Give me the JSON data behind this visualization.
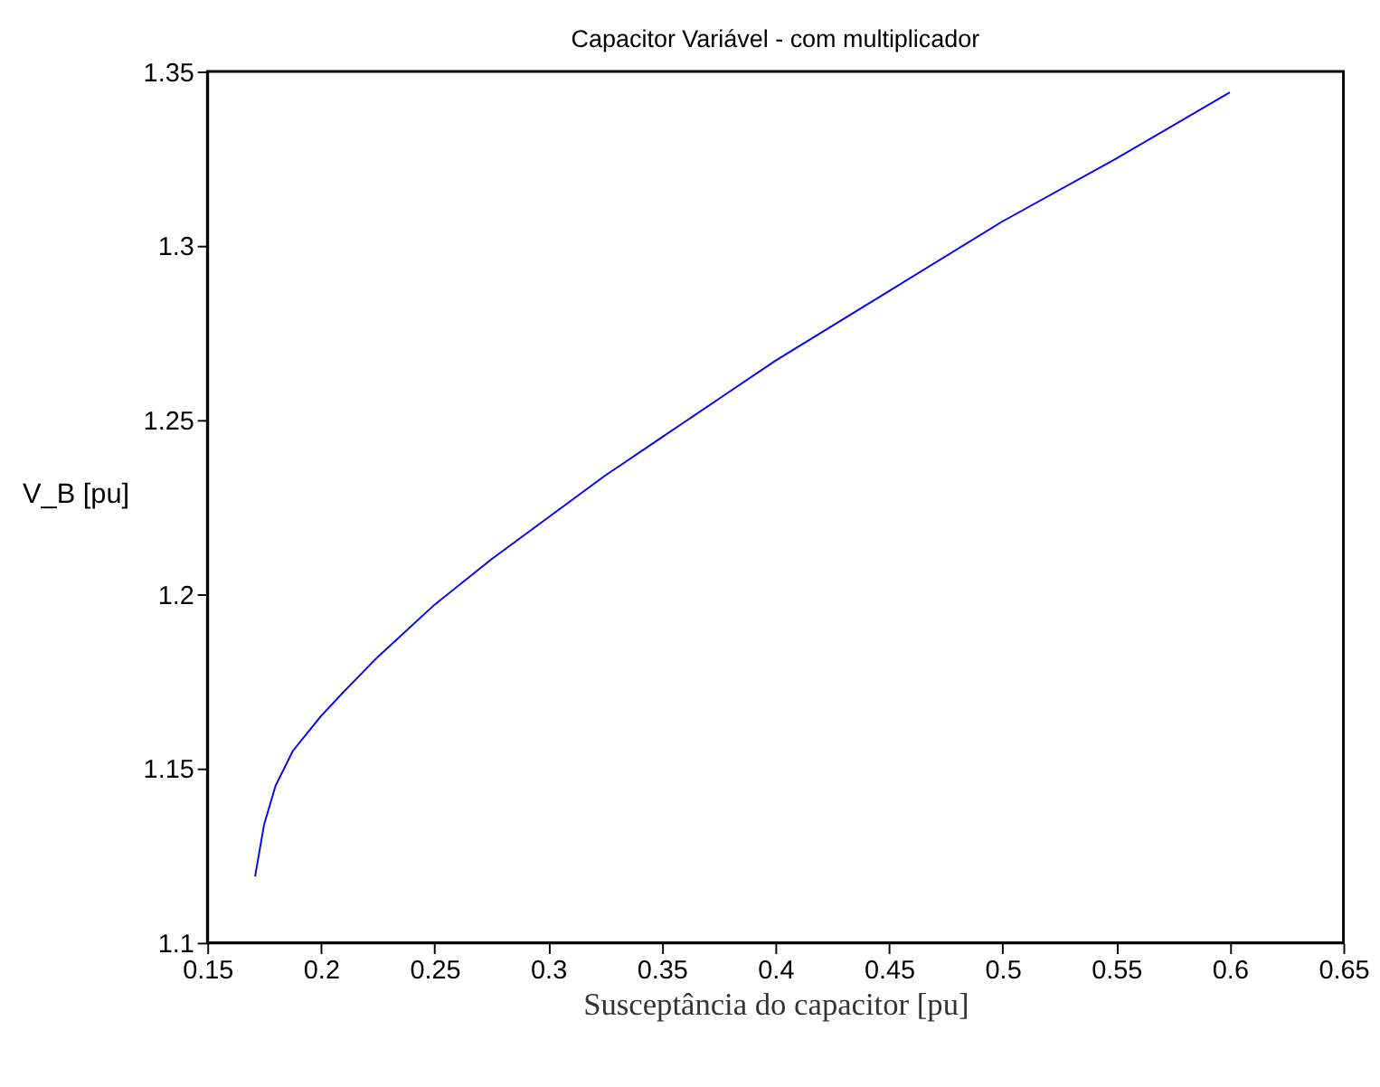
{
  "chart_data": {
    "type": "line",
    "title": "Capacitor Variável - com multiplicador",
    "xlabel": "Susceptância do capacitor [pu]",
    "ylabel": "V_B [pu]",
    "series": [
      {
        "color": "#0000ff",
        "x": [
          0.171,
          0.175,
          0.18,
          0.1876,
          0.195,
          0.2,
          0.21,
          0.225,
          0.25,
          0.275,
          0.3,
          0.325,
          0.35,
          0.375,
          0.4,
          0.45,
          0.5,
          0.55,
          0.6
        ],
        "values": [
          1.119,
          1.134,
          1.145,
          1.155,
          1.161,
          1.165,
          1.172,
          1.182,
          1.197,
          1.21,
          1.222,
          1.234,
          1.245,
          1.256,
          1.267,
          1.287,
          1.307,
          1.325,
          1.344
        ]
      }
    ],
    "xlim": [
      0.15,
      0.65
    ],
    "xticks": [
      0.15,
      0.2,
      0.25,
      0.3,
      0.35,
      0.4,
      0.45,
      0.5,
      0.55,
      0.6,
      0.65
    ],
    "ylim": [
      1.1,
      1.35
    ],
    "yticks": [
      1.1,
      1.15,
      1.2,
      1.25,
      1.3,
      1.35
    ],
    "grid": false,
    "legend": false,
    "line_style": "solid",
    "marker": "none"
  }
}
